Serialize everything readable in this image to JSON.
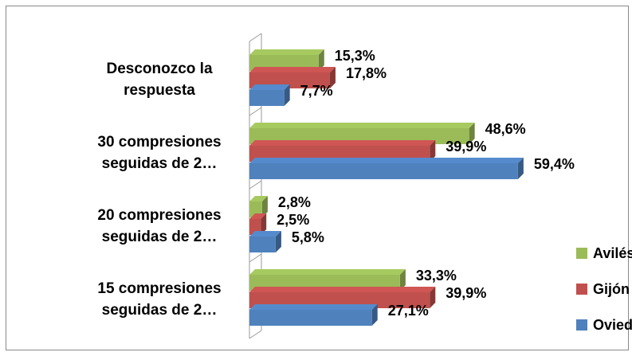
{
  "chart_data": {
    "type": "bar",
    "orientation": "horizontal",
    "categories": [
      "Desconozco la respuesta",
      "30 compresiones seguidas de 2…",
      "20 compresiones seguidas de 2…",
      "15 compresiones seguidas de 2…"
    ],
    "series": [
      {
        "name": "Avilés",
        "color": "#9bbb59",
        "values": [
          15.3,
          48.6,
          2.8,
          33.3
        ],
        "value_labels": [
          "15,3%",
          "48,6%",
          "2,8%",
          "33,3%"
        ]
      },
      {
        "name": "Gijón",
        "color": "#c0504d",
        "values": [
          17.8,
          39.9,
          2.5,
          39.9
        ],
        "value_labels": [
          "17,8%",
          "39,9%",
          "2,5%",
          "39,9%"
        ]
      },
      {
        "name": "Oviedo",
        "color": "#4f81bd",
        "values": [
          7.7,
          59.4,
          5.8,
          27.1
        ],
        "value_labels": [
          "7,7%",
          "59,4%",
          "5,8%",
          "27,1%"
        ]
      }
    ],
    "xlim": [
      0,
      70
    ],
    "legend": "right"
  }
}
